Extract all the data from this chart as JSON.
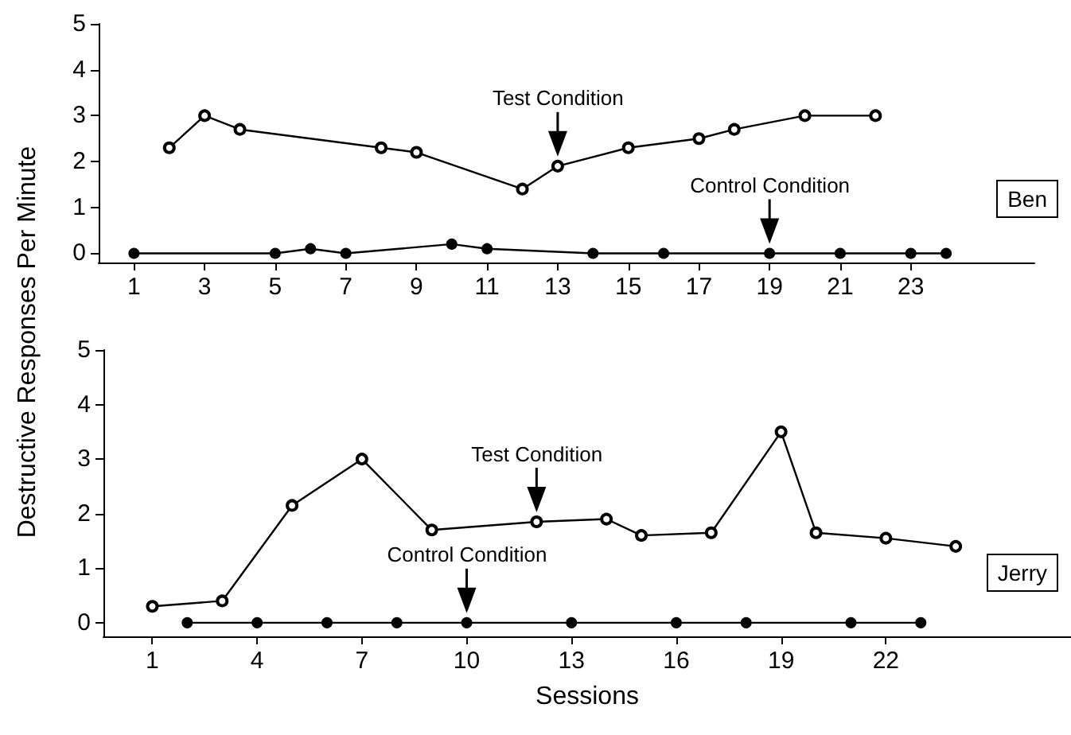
{
  "chart_data": [
    {
      "type": "line",
      "ylabel": "Destructive Responses Per Minute",
      "xlim": [
        0,
        26.5
      ],
      "xticks": [
        1,
        3,
        5,
        7,
        9,
        11,
        13,
        15,
        17,
        19,
        21,
        23
      ],
      "ylim": [
        -0.2,
        5
      ],
      "yticks": [
        0,
        1,
        2,
        3,
        4,
        5
      ],
      "marker": "circle",
      "series": [
        {
          "color": "#000000",
          "x": [
            2,
            3,
            4,
            8,
            9,
            12,
            13,
            15,
            17,
            18,
            20,
            22
          ],
          "values": [
            2.3,
            3.0,
            2.7,
            2.3,
            2.2,
            1.4,
            1.9,
            2.3,
            2.5,
            2.7,
            3.0,
            3.0
          ]
        },
        {
          "color": "#000000",
          "x": [
            1,
            5,
            6,
            7,
            10,
            11,
            14,
            16,
            19,
            21,
            23,
            24
          ],
          "values": [
            0,
            0,
            0.1,
            0,
            0.2,
            0.1,
            0,
            0,
            0,
            0,
            0,
            0
          ]
        }
      ],
      "annotations": [
        {
          "text": "Test Condition",
          "x": 13,
          "y": 1.9
        },
        {
          "text": "Control Condition",
          "x": 19,
          "y": 0
        },
        "Ben"
      ]
    },
    {
      "type": "line",
      "xlabel": "Sessions",
      "xlim": [
        -0.4,
        27.3
      ],
      "xticks": [
        1,
        4,
        7,
        10,
        13,
        16,
        19,
        22
      ],
      "ylim": [
        -0.25,
        5
      ],
      "yticks": [
        0,
        1,
        2,
        3,
        4,
        5
      ],
      "marker": "circle",
      "series": [
        {
          "color": "#000000",
          "x": [
            1,
            3,
            5,
            7,
            9,
            12,
            14,
            15,
            17,
            19,
            20,
            22,
            24
          ],
          "values": [
            0.3,
            0.4,
            2.15,
            3.0,
            1.7,
            1.85,
            1.9,
            1.6,
            1.65,
            3.5,
            1.65,
            1.55,
            1.4
          ]
        },
        {
          "color": "#000000",
          "x": [
            2,
            4,
            6,
            8,
            10,
            13,
            16,
            18,
            21,
            23
          ],
          "values": [
            0,
            0,
            0,
            0,
            0,
            0,
            0,
            0,
            0,
            0
          ]
        }
      ],
      "annotations": [
        {
          "text": "Test Condition",
          "x": 12,
          "y": 1.85
        },
        {
          "text": "Control Condition",
          "x": 10,
          "y": 0
        },
        "Jerry"
      ]
    }
  ]
}
